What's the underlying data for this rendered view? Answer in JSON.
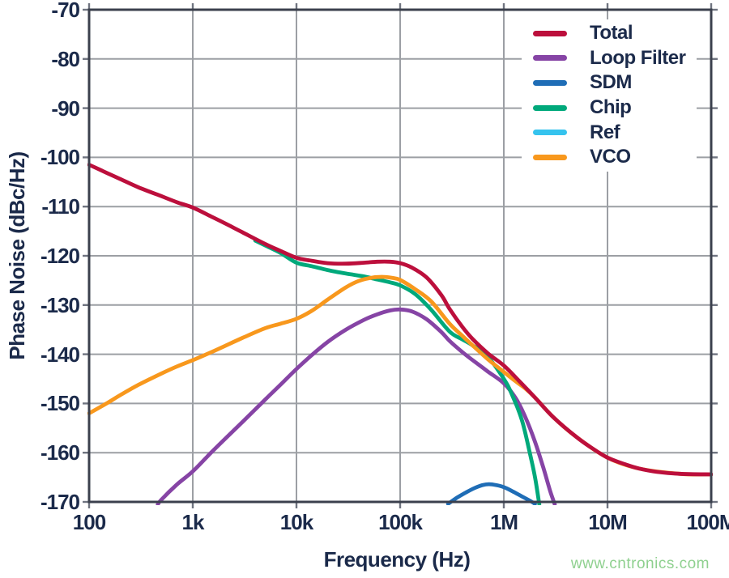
{
  "watermark": {
    "text": "www.cntronics.com",
    "color": "#8FD08F"
  },
  "colors": {
    "text": "#1B2A4A",
    "grid": "#9C9FA4",
    "border": "#3B404D",
    "tick": "#6F7480",
    "background": "#FFFFFF"
  },
  "chart_data": {
    "type": "line",
    "title": "",
    "xlabel": "Frequency (Hz)",
    "ylabel": "Phase Noise (dBc/Hz)",
    "x_scale": "log",
    "x_range": [
      100,
      100000000
    ],
    "y_range": [
      -170,
      -70
    ],
    "grid": true,
    "legend_position": "top-right-inside",
    "x_ticks": [
      {
        "f": 100,
        "label": "100"
      },
      {
        "f": 1000,
        "label": "1k"
      },
      {
        "f": 10000,
        "label": "10k"
      },
      {
        "f": 100000,
        "label": "100k"
      },
      {
        "f": 1000000,
        "label": "1M"
      },
      {
        "f": 10000000,
        "label": "10M"
      },
      {
        "f": 100000000,
        "label": "100M"
      }
    ],
    "y_ticks": [
      {
        "v": -70,
        "label": "-70"
      },
      {
        "v": -80,
        "label": "-80"
      },
      {
        "v": -90,
        "label": "-90"
      },
      {
        "v": -100,
        "label": "-100"
      },
      {
        "v": -110,
        "label": "-110"
      },
      {
        "v": -120,
        "label": "-120"
      },
      {
        "v": -130,
        "label": "-130"
      },
      {
        "v": -140,
        "label": "-140"
      },
      {
        "v": -150,
        "label": "-150"
      },
      {
        "v": -160,
        "label": "-160"
      },
      {
        "v": -170,
        "label": "-170"
      }
    ],
    "legend": [
      "Total",
      "Loop Filter",
      "SDM",
      "Chip",
      "Ref",
      "VCO"
    ],
    "draw_order": [
      "Ref",
      "SDM",
      "Loop Filter",
      "Chip",
      "VCO",
      "Total"
    ],
    "series": [
      {
        "name": "Total",
        "color": "#BC0F3C",
        "visible_in_plot": true,
        "points": [
          [
            100,
            -101.5
          ],
          [
            150,
            -103.2
          ],
          [
            200,
            -104.4
          ],
          [
            300,
            -106.1
          ],
          [
            500,
            -107.9
          ],
          [
            700,
            -109.1
          ],
          [
            1000,
            -110.2
          ],
          [
            1500,
            -112.0
          ],
          [
            2000,
            -113.3
          ],
          [
            3000,
            -115.2
          ],
          [
            5000,
            -117.6
          ],
          [
            7000,
            -119.0
          ],
          [
            10000,
            -120.4
          ],
          [
            14000,
            -121.0
          ],
          [
            20000,
            -121.5
          ],
          [
            30000,
            -121.6
          ],
          [
            45000,
            -121.4
          ],
          [
            60000,
            -121.2
          ],
          [
            80000,
            -121.2
          ],
          [
            100000,
            -121.5
          ],
          [
            130000,
            -122.4
          ],
          [
            180000,
            -124.4
          ],
          [
            250000,
            -128.0
          ],
          [
            300000,
            -130.8
          ],
          [
            400000,
            -134.5
          ],
          [
            500000,
            -136.9
          ],
          [
            700000,
            -139.8
          ],
          [
            1000000,
            -142.3
          ],
          [
            1400000,
            -145.4
          ],
          [
            2000000,
            -148.8
          ],
          [
            3000000,
            -152.8
          ],
          [
            5000000,
            -156.8
          ],
          [
            7000000,
            -159.0
          ],
          [
            10000000,
            -161.0
          ],
          [
            15000000,
            -162.4
          ],
          [
            20000000,
            -163.2
          ],
          [
            30000000,
            -163.9
          ],
          [
            50000000,
            -164.3
          ],
          [
            100000000,
            -164.4
          ]
        ]
      },
      {
        "name": "Loop Filter",
        "color": "#8644A5",
        "visible_in_plot": true,
        "points": [
          [
            460,
            -170.5
          ],
          [
            500,
            -169.5
          ],
          [
            700,
            -166.5
          ],
          [
            1000,
            -163.8
          ],
          [
            1500,
            -160.0
          ],
          [
            2000,
            -157.4
          ],
          [
            3000,
            -153.8
          ],
          [
            5000,
            -149.2
          ],
          [
            7000,
            -146.2
          ],
          [
            10000,
            -143.0
          ],
          [
            14000,
            -140.2
          ],
          [
            20000,
            -137.5
          ],
          [
            30000,
            -135.0
          ],
          [
            45000,
            -133.0
          ],
          [
            60000,
            -131.9
          ],
          [
            80000,
            -131.1
          ],
          [
            100000,
            -130.9
          ],
          [
            130000,
            -131.3
          ],
          [
            180000,
            -132.9
          ],
          [
            250000,
            -135.5
          ],
          [
            300000,
            -137.3
          ],
          [
            400000,
            -139.6
          ],
          [
            500000,
            -141.2
          ],
          [
            700000,
            -143.5
          ],
          [
            1000000,
            -145.9
          ],
          [
            1300000,
            -148.9
          ],
          [
            1600000,
            -152.6
          ],
          [
            2000000,
            -157.8
          ],
          [
            2400000,
            -163.0
          ],
          [
            2800000,
            -167.8
          ],
          [
            3100000,
            -170.5
          ]
        ]
      },
      {
        "name": "SDM",
        "color": "#1F6DB6",
        "visible_in_plot": true,
        "points": [
          [
            290000,
            -170.4
          ],
          [
            350000,
            -169.2
          ],
          [
            430000,
            -168.1
          ],
          [
            520000,
            -167.2
          ],
          [
            620000,
            -166.6
          ],
          [
            720000,
            -166.4
          ],
          [
            850000,
            -166.6
          ],
          [
            1000000,
            -167.0
          ],
          [
            1200000,
            -167.8
          ],
          [
            1500000,
            -168.9
          ],
          [
            1800000,
            -169.8
          ],
          [
            2000000,
            -170.4
          ]
        ]
      },
      {
        "name": "Chip",
        "color": "#00A97B",
        "visible_in_plot": true,
        "points": [
          [
            4000,
            -116.9
          ],
          [
            5000,
            -117.9
          ],
          [
            7000,
            -119.4
          ],
          [
            10000,
            -121.4
          ],
          [
            14000,
            -122.1
          ],
          [
            20000,
            -122.9
          ],
          [
            30000,
            -123.6
          ],
          [
            45000,
            -124.2
          ],
          [
            60000,
            -124.8
          ],
          [
            80000,
            -125.4
          ],
          [
            100000,
            -126.0
          ],
          [
            140000,
            -127.8
          ],
          [
            200000,
            -131.0
          ],
          [
            300000,
            -135.4
          ],
          [
            400000,
            -137.0
          ],
          [
            500000,
            -138.2
          ],
          [
            700000,
            -140.5
          ],
          [
            1000000,
            -145.0
          ],
          [
            1200000,
            -148.2
          ],
          [
            1500000,
            -153.5
          ],
          [
            1800000,
            -160.5
          ],
          [
            2000000,
            -165.0
          ],
          [
            2200000,
            -170.5
          ]
        ]
      },
      {
        "name": "Ref",
        "color": "#35C3EE",
        "visible_in_plot": false,
        "points": []
      },
      {
        "name": "VCO",
        "color": "#F8981D",
        "visible_in_plot": true,
        "points": [
          [
            100,
            -152.0
          ],
          [
            150,
            -149.9
          ],
          [
            200,
            -148.3
          ],
          [
            300,
            -146.2
          ],
          [
            500,
            -143.9
          ],
          [
            700,
            -142.5
          ],
          [
            1000,
            -141.2
          ],
          [
            1500,
            -139.6
          ],
          [
            2000,
            -138.4
          ],
          [
            3000,
            -136.7
          ],
          [
            5000,
            -134.7
          ],
          [
            7000,
            -133.8
          ],
          [
            10000,
            -132.8
          ],
          [
            14000,
            -131.2
          ],
          [
            20000,
            -128.9
          ],
          [
            30000,
            -126.4
          ],
          [
            40000,
            -125.1
          ],
          [
            55000,
            -124.4
          ],
          [
            70000,
            -124.3
          ],
          [
            85000,
            -124.5
          ],
          [
            100000,
            -124.9
          ],
          [
            140000,
            -126.8
          ],
          [
            200000,
            -129.3
          ],
          [
            300000,
            -133.8
          ],
          [
            400000,
            -136.3
          ],
          [
            500000,
            -138.2
          ],
          [
            700000,
            -141.0
          ],
          [
            1000000,
            -143.6
          ],
          [
            1300000,
            -145.5
          ],
          [
            1600000,
            -146.9
          ],
          [
            2000000,
            -148.8
          ],
          [
            3000000,
            -152.8
          ],
          [
            5000000,
            -156.8
          ],
          [
            10000000,
            -161.0
          ],
          [
            20000000,
            -163.2
          ],
          [
            50000000,
            -164.3
          ],
          [
            100000000,
            -164.4
          ]
        ]
      }
    ]
  }
}
